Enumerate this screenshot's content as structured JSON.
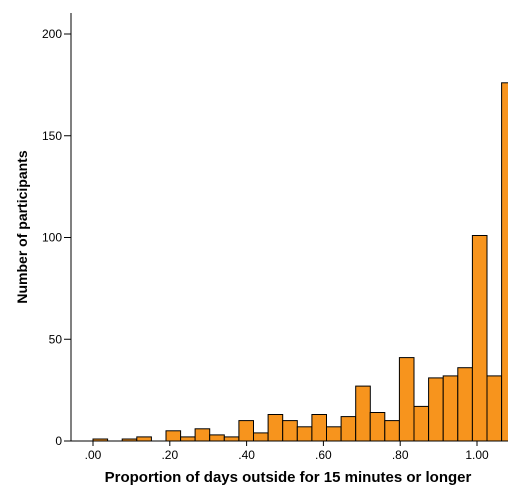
{
  "chart_data": {
    "type": "bar",
    "xlabel": "Proportion of days outside for 15 minutes or longer",
    "ylabel": "Number of participants",
    "xlim": [
      -0.05,
      1.02
    ],
    "ylim": [
      0,
      212
    ],
    "x_ticks": [
      0.0,
      0.2,
      0.4,
      0.6,
      0.8,
      1.0
    ],
    "x_tick_labels": [
      ".00",
      ".20",
      ".40",
      ".60",
      ".80",
      "1.00"
    ],
    "y_ticks": [
      0,
      50,
      100,
      150,
      200
    ],
    "y_tick_labels": [
      "0",
      "50",
      "100",
      "150",
      "200"
    ],
    "grid": false,
    "bar_color": "#f7941d",
    "bar_edge_color": "#000000",
    "bins": [
      {
        "start": 0.0,
        "end": 0.038,
        "count": 1
      },
      {
        "start": 0.038,
        "end": 0.076,
        "count": 0
      },
      {
        "start": 0.076,
        "end": 0.114,
        "count": 1
      },
      {
        "start": 0.114,
        "end": 0.152,
        "count": 2
      },
      {
        "start": 0.152,
        "end": 0.19,
        "count": 0
      },
      {
        "start": 0.19,
        "end": 0.228,
        "count": 5
      },
      {
        "start": 0.228,
        "end": 0.266,
        "count": 2
      },
      {
        "start": 0.266,
        "end": 0.304,
        "count": 6
      },
      {
        "start": 0.304,
        "end": 0.342,
        "count": 3
      },
      {
        "start": 0.342,
        "end": 0.38,
        "count": 2
      },
      {
        "start": 0.38,
        "end": 0.418,
        "count": 10
      },
      {
        "start": 0.418,
        "end": 0.456,
        "count": 4
      },
      {
        "start": 0.456,
        "end": 0.494,
        "count": 13
      },
      {
        "start": 0.494,
        "end": 0.532,
        "count": 10
      },
      {
        "start": 0.532,
        "end": 0.57,
        "count": 7
      },
      {
        "start": 0.57,
        "end": 0.608,
        "count": 13
      },
      {
        "start": 0.608,
        "end": 0.646,
        "count": 7
      },
      {
        "start": 0.646,
        "end": 0.684,
        "count": 12
      },
      {
        "start": 0.684,
        "end": 0.722,
        "count": 27
      },
      {
        "start": 0.722,
        "end": 0.76,
        "count": 14
      },
      {
        "start": 0.76,
        "end": 0.798,
        "count": 10
      },
      {
        "start": 0.798,
        "end": 0.836,
        "count": 41
      },
      {
        "start": 0.836,
        "end": 0.874,
        "count": 17
      },
      {
        "start": 0.874,
        "end": 0.912,
        "count": 31
      },
      {
        "start": 0.912,
        "end": 0.95,
        "count": 32
      },
      {
        "start": 0.95,
        "end": 0.988,
        "count": 36
      },
      {
        "start": 0.988,
        "end": 1.026,
        "count": 101
      },
      {
        "start": 1.026,
        "end": 1.064,
        "count": 32
      },
      {
        "start": 1.064,
        "end": 1.102,
        "count": 176
      }
    ]
  }
}
